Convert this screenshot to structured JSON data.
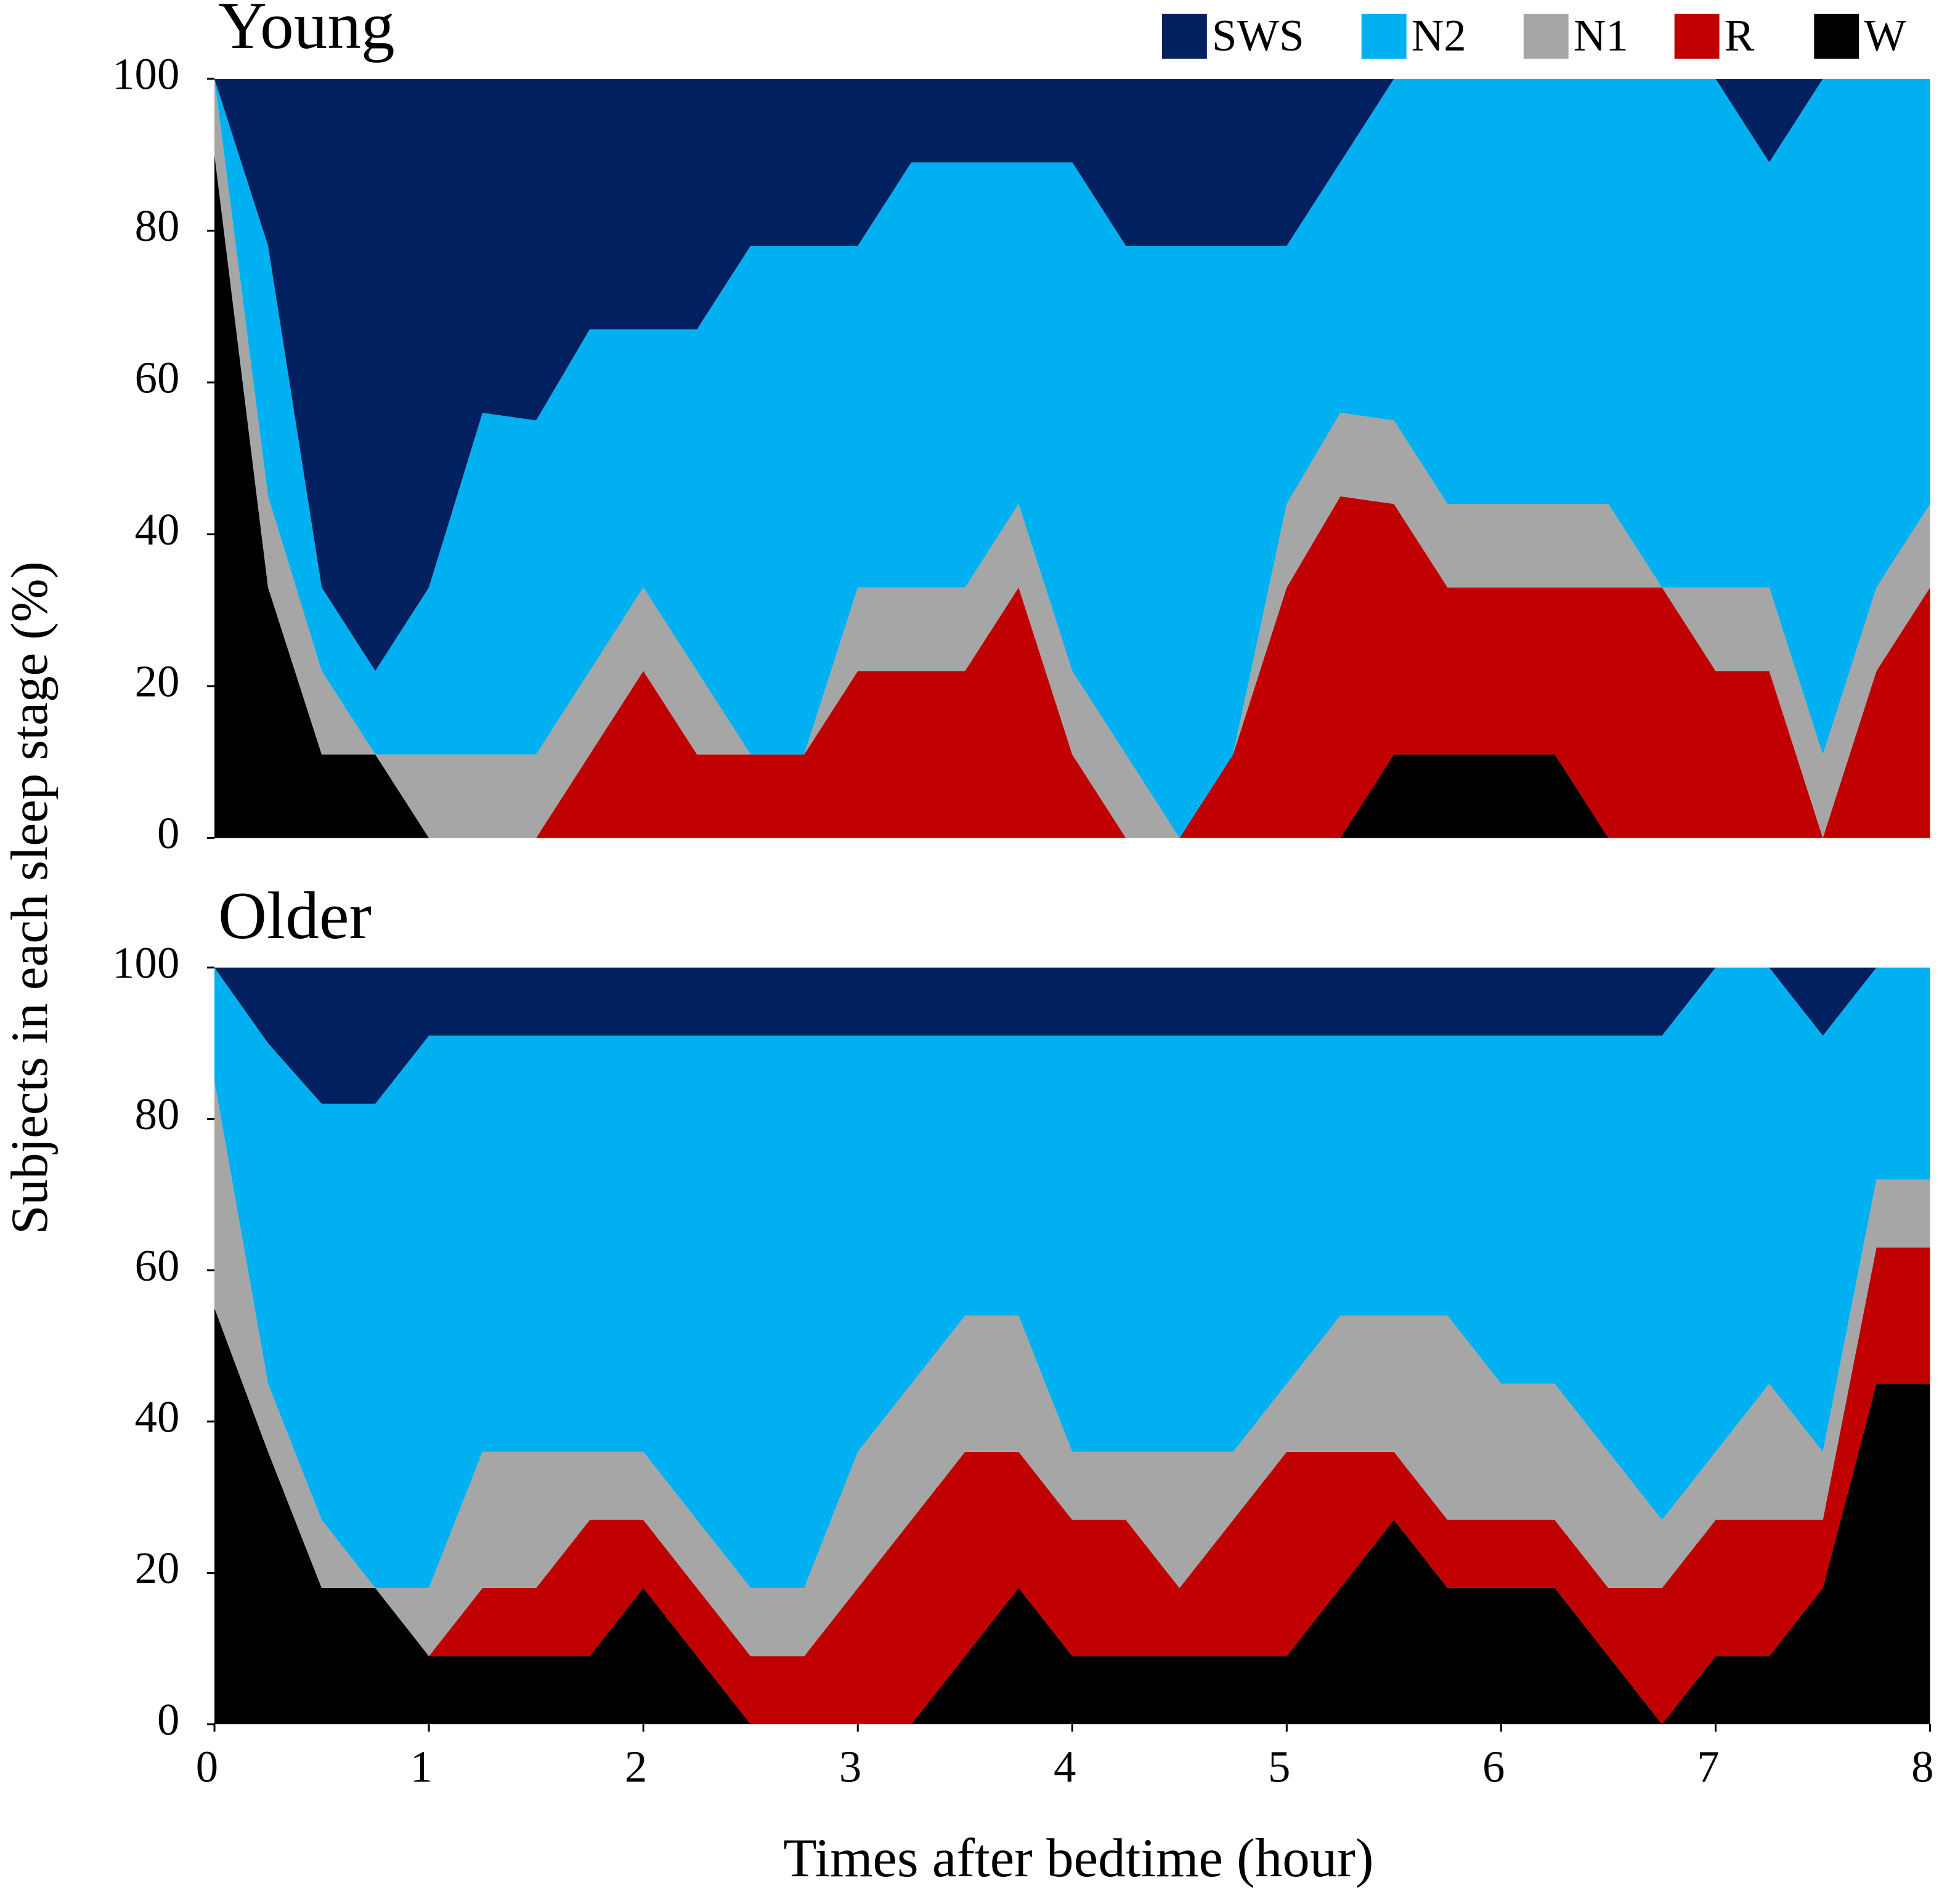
{
  "chart_data": [
    {
      "type": "area",
      "title": "Young",
      "ylabel": "Subjects in each sleep stage (%)",
      "x": [
        0,
        0.25,
        0.5,
        0.75,
        1,
        1.25,
        1.5,
        1.75,
        2,
        2.25,
        2.5,
        2.75,
        3,
        3.25,
        3.5,
        3.75,
        4,
        4.25,
        4.5,
        4.75,
        5,
        5.25,
        5.5,
        5.75,
        6,
        6.25,
        6.5,
        6.75,
        7,
        7.25,
        7.5,
        7.75,
        8
      ],
      "series": [
        {
          "name": "SWS",
          "color": "#002060",
          "values": [
            0,
            22,
            67,
            78,
            67,
            44,
            45,
            33,
            33,
            33,
            22,
            22,
            22,
            11,
            11,
            11,
            11,
            22,
            22,
            22,
            22,
            11,
            0,
            0,
            0,
            0,
            0,
            0,
            0,
            11,
            0,
            0,
            0
          ]
        },
        {
          "name": "N2",
          "color": "#00b0f0",
          "values": [
            0,
            33,
            11,
            11,
            22,
            45,
            44,
            45,
            34,
            45,
            67,
            67,
            45,
            56,
            56,
            45,
            67,
            67,
            78,
            67,
            34,
            33,
            45,
            56,
            56,
            56,
            56,
            67,
            67,
            56,
            89,
            67,
            56
          ]
        },
        {
          "name": "N1",
          "color": "#a6a6a6",
          "values": [
            10,
            12,
            11,
            0,
            11,
            11,
            11,
            11,
            11,
            11,
            0,
            0,
            11,
            11,
            11,
            11,
            11,
            11,
            0,
            0,
            11,
            11,
            11,
            11,
            11,
            11,
            11,
            0,
            11,
            11,
            11,
            11,
            11
          ]
        },
        {
          "name": "R",
          "color": "#c00000",
          "values": [
            0,
            0,
            0,
            0,
            0,
            0,
            0,
            11,
            22,
            11,
            11,
            11,
            22,
            22,
            22,
            33,
            11,
            0,
            0,
            11,
            33,
            45,
            33,
            22,
            22,
            22,
            33,
            33,
            22,
            22,
            0,
            22,
            33
          ]
        },
        {
          "name": "W",
          "color": "#000000",
          "values": [
            90,
            33,
            11,
            11,
            0,
            0,
            0,
            0,
            0,
            0,
            0,
            0,
            0,
            0,
            0,
            0,
            0,
            0,
            0,
            0,
            0,
            0,
            11,
            11,
            11,
            11,
            0,
            0,
            0,
            0,
            0,
            0,
            0
          ]
        }
      ],
      "xlim": [
        0,
        8
      ],
      "ylim": [
        0,
        100
      ],
      "yticks": [
        0,
        20,
        40,
        60,
        80,
        100
      ]
    },
    {
      "type": "area",
      "title": "Older",
      "xlabel": "Times after bedtime (hour)",
      "x": [
        0,
        0.25,
        0.5,
        0.75,
        1,
        1.25,
        1.5,
        1.75,
        2,
        2.25,
        2.5,
        2.75,
        3,
        3.25,
        3.5,
        3.75,
        4,
        4.25,
        4.5,
        4.75,
        5,
        5.25,
        5.5,
        5.75,
        6,
        6.25,
        6.5,
        6.75,
        7,
        7.25,
        7.5,
        7.75,
        8
      ],
      "series": [
        {
          "name": "SWS",
          "color": "#002060",
          "values": [
            0,
            10,
            18,
            18,
            9,
            9,
            9,
            9,
            9,
            9,
            9,
            9,
            9,
            9,
            9,
            9,
            9,
            9,
            9,
            9,
            9,
            9,
            9,
            9,
            9,
            9,
            9,
            9,
            0,
            0,
            9,
            0,
            0
          ]
        },
        {
          "name": "N2",
          "color": "#00b0f0",
          "values": [
            15,
            45,
            55,
            64,
            73,
            55,
            55,
            55,
            55,
            64,
            73,
            73,
            55,
            46,
            37,
            37,
            55,
            55,
            55,
            55,
            46,
            37,
            37,
            37,
            46,
            46,
            55,
            64,
            64,
            55,
            55,
            28,
            28
          ]
        },
        {
          "name": "N1",
          "color": "#a6a6a6",
          "values": [
            30,
            9,
            9,
            0,
            9,
            18,
            18,
            9,
            9,
            9,
            9,
            9,
            18,
            18,
            18,
            18,
            9,
            9,
            18,
            9,
            9,
            18,
            18,
            27,
            18,
            18,
            18,
            9,
            9,
            18,
            9,
            9,
            9
          ]
        },
        {
          "name": "R",
          "color": "#c00000",
          "values": [
            0,
            0,
            0,
            0,
            0,
            9,
            9,
            18,
            9,
            9,
            9,
            9,
            18,
            27,
            27,
            18,
            18,
            18,
            9,
            18,
            27,
            18,
            9,
            9,
            9,
            9,
            9,
            18,
            18,
            18,
            9,
            18,
            18
          ]
        },
        {
          "name": "W",
          "color": "#000000",
          "values": [
            55,
            36,
            18,
            18,
            9,
            9,
            9,
            9,
            18,
            9,
            0,
            0,
            0,
            0,
            9,
            18,
            9,
            9,
            9,
            9,
            9,
            18,
            27,
            18,
            18,
            18,
            9,
            0,
            9,
            9,
            18,
            45,
            45
          ]
        }
      ],
      "xlim": [
        0,
        8
      ],
      "xticks": [
        0,
        1,
        2,
        3,
        4,
        5,
        6,
        7,
        8
      ],
      "ylim": [
        0,
        100
      ],
      "yticks": [
        0,
        20,
        40,
        60,
        80,
        100
      ]
    }
  ]
}
